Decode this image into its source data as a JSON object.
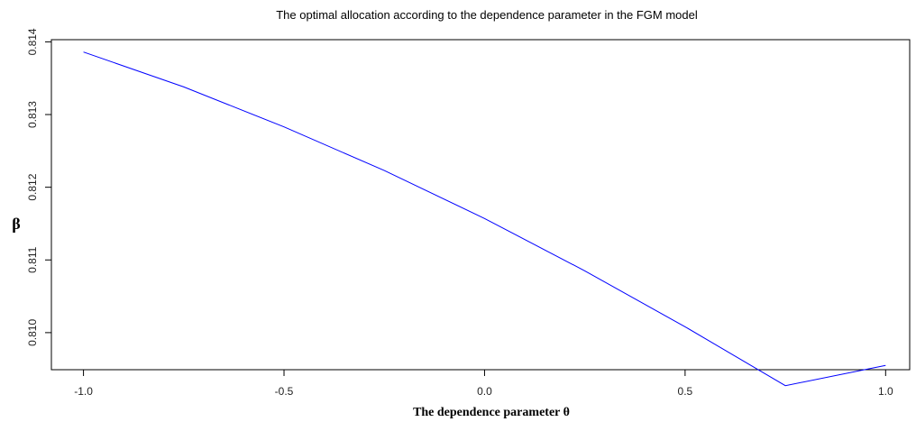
{
  "chart_data": {
    "type": "line",
    "title": "The optimal allocation according to the dependence parameter in the FGM model",
    "xlabel": "The dependence parameter θ",
    "ylabel": "β",
    "xlim": [
      -1.08,
      1.06
    ],
    "ylim": [
      0.80949,
      0.81403
    ],
    "x_ticks": [
      -1.0,
      -0.5,
      0.0,
      0.5,
      1.0
    ],
    "x_tick_labels": [
      "-1.0",
      "-0.5",
      "0.0",
      "0.5",
      "1.0"
    ],
    "y_ticks": [
      0.81,
      0.811,
      0.812,
      0.813,
      0.814
    ],
    "y_tick_labels": [
      "0.810",
      "0.811",
      "0.812",
      "0.813",
      "0.814"
    ],
    "grid": false,
    "legend": "none",
    "series": [
      {
        "color": "#0000ff",
        "x": [
          -1.0,
          -0.75,
          -0.5,
          -0.25,
          0.0,
          0.25,
          0.5,
          0.75,
          1.0
        ],
        "y": [
          0.81386,
          0.81338,
          0.81283,
          0.81223,
          0.81157,
          0.81085,
          0.81008,
          0.80927,
          0.80955
        ]
      }
    ]
  }
}
